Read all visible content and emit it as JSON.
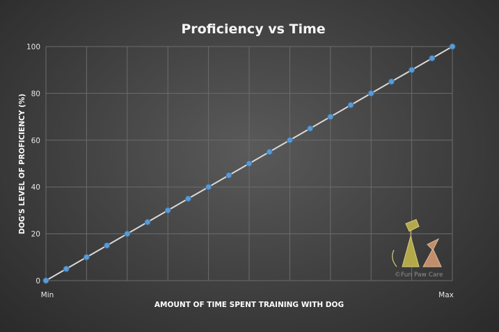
{
  "chart_data": {
    "type": "line",
    "title": "Proficiency vs Time",
    "xlabel": "AMOUNT OF TIME SPENT TRAINING WITH DOG",
    "ylabel": "DOG'S LEVEL OF PROFICIENCY (%)",
    "x_tick_labels": [
      "Min",
      "Max"
    ],
    "y_ticks": [
      0,
      20,
      40,
      60,
      80,
      100
    ],
    "ylim": [
      0,
      100
    ],
    "grid": true,
    "legend": "none",
    "series": [
      {
        "values": [
          0,
          5,
          10,
          15,
          20,
          25,
          30,
          35,
          40,
          45,
          50,
          55,
          60,
          65,
          70,
          75,
          80,
          85,
          90,
          95,
          100
        ]
      }
    ],
    "colors": {
      "line": "#d9d9d9",
      "marker": "#5b9bd5"
    }
  },
  "watermark": {
    "text": "©Fun Paw Care"
  }
}
